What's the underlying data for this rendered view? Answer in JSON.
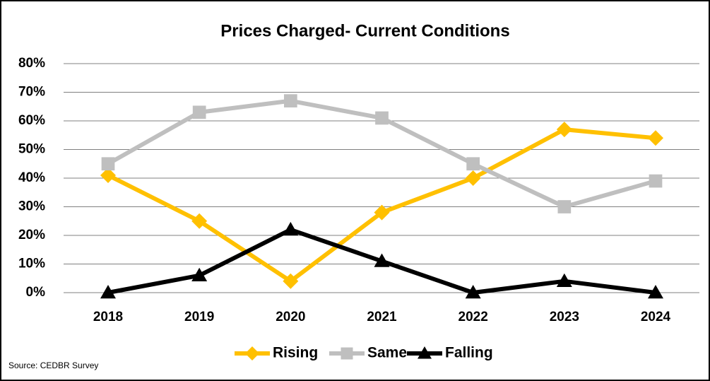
{
  "chart_data": {
    "type": "line",
    "title": "Prices Charged- Current Conditions",
    "source": "Source: CEDBR Survey",
    "categories": [
      "2018",
      "2019",
      "2020",
      "2021",
      "2022",
      "2023",
      "2024"
    ],
    "series": [
      {
        "name": "Rising",
        "color": "#FFC000",
        "marker": "diamond",
        "values": [
          41,
          25,
          4,
          28,
          40,
          57,
          54
        ]
      },
      {
        "name": "Same",
        "color": "#BFBFBF",
        "marker": "square",
        "values": [
          45,
          63,
          67,
          61,
          45,
          30,
          39
        ]
      },
      {
        "name": "Falling",
        "color": "#000000",
        "marker": "triangle",
        "values": [
          0,
          6,
          22,
          11,
          0,
          4,
          0
        ]
      }
    ],
    "ylim": [
      0,
      80
    ],
    "yticks": [
      {
        "value": 0,
        "label": "0%"
      },
      {
        "value": 10,
        "label": "10%"
      },
      {
        "value": 20,
        "label": "20%"
      },
      {
        "value": 30,
        "label": "30%"
      },
      {
        "value": 40,
        "label": "40%"
      },
      {
        "value": 50,
        "label": "50%"
      },
      {
        "value": 60,
        "label": "60%"
      },
      {
        "value": 70,
        "label": "70%"
      },
      {
        "value": 80,
        "label": "80%"
      }
    ],
    "grid": true,
    "legend": "bottom"
  }
}
